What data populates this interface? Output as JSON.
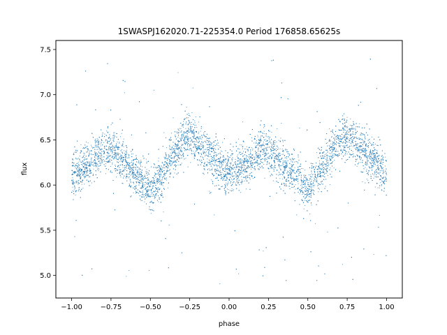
{
  "chart_data": {
    "type": "scatter",
    "title": "1SWASPJ162020.71-225354.0 Period 176858.65625s",
    "xlabel": "phase",
    "ylabel": "flux",
    "xlim": [
      -1.1,
      1.1
    ],
    "ylim": [
      4.75,
      7.6
    ],
    "xticks": [
      -1.0,
      -0.75,
      -0.5,
      -0.25,
      0.0,
      0.25,
      0.5,
      0.75,
      1.0
    ],
    "xtick_labels": [
      "−1.00",
      "−0.75",
      "−0.50",
      "−0.25",
      "0.00",
      "0.25",
      "0.50",
      "0.75",
      "1.00"
    ],
    "yticks": [
      5.0,
      5.5,
      6.0,
      6.5,
      7.0,
      7.5
    ],
    "ytick_labels": [
      "5.0",
      "5.5",
      "6.0",
      "6.5",
      "7.0",
      "7.5"
    ],
    "grid": false,
    "point_color": "#1f77b4",
    "series": [
      {
        "phase_range": [
          -1.0,
          1.0
        ],
        "approx_point_count": 9000,
        "trend": {
          "x": [
            -1.0,
            -0.9,
            -0.8,
            -0.75,
            -0.7,
            -0.6,
            -0.5,
            -0.4,
            -0.3,
            -0.25,
            -0.2,
            -0.1,
            0.0,
            0.1,
            0.2,
            0.25,
            0.3,
            0.4,
            0.5,
            0.6,
            0.7,
            0.75,
            0.8,
            0.9,
            1.0
          ],
          "y": [
            6.1,
            6.22,
            6.38,
            6.4,
            6.32,
            6.15,
            5.92,
            6.2,
            6.5,
            6.55,
            6.45,
            6.3,
            6.1,
            6.2,
            6.38,
            6.4,
            6.32,
            6.15,
            5.92,
            6.2,
            6.5,
            6.55,
            6.45,
            6.3,
            6.1
          ]
        },
        "scatter_spread": 0.12,
        "outlier_range": [
          4.9,
          7.4
        ]
      }
    ]
  }
}
